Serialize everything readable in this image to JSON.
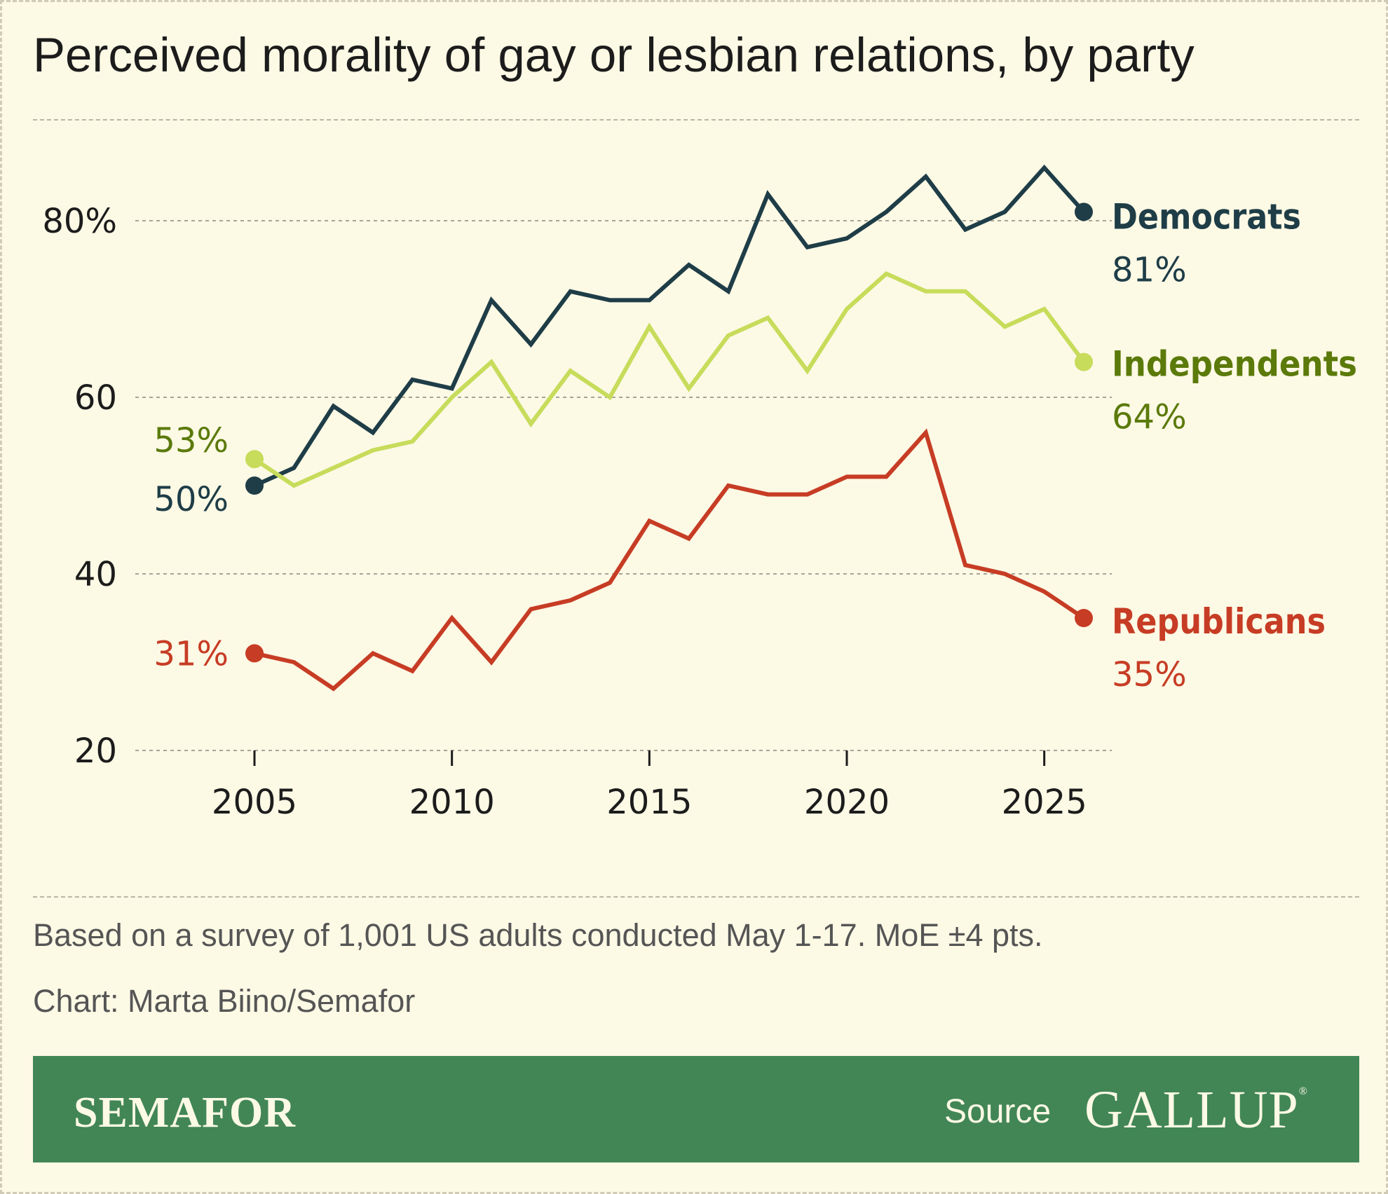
{
  "title": "Perceived morality of gay or lesbian relations, by party",
  "footer": {
    "note": "Based on a survey of 1,001 US adults conducted May 1-17. MoE ±4 pts.",
    "credit": "Chart: Marta Biino/Semafor"
  },
  "banner": {
    "brand": "SEMAFOR",
    "source_label": "Source",
    "source_logo": "GALLUP",
    "source_logo_mark": "®",
    "color": "#428656"
  },
  "chart_data": {
    "type": "line",
    "xlim": [
      2005,
      2026
    ],
    "ylim": [
      20,
      80
    ],
    "y_ticks": [
      {
        "value": 80,
        "label": "80%"
      },
      {
        "value": 60,
        "label": "60"
      },
      {
        "value": 40,
        "label": "40"
      },
      {
        "value": 20,
        "label": "20"
      }
    ],
    "x_ticks": [
      {
        "value": 2005,
        "label": "2005"
      },
      {
        "value": 2010,
        "label": "2010"
      },
      {
        "value": 2015,
        "label": "2015"
      },
      {
        "value": 2020,
        "label": "2020"
      },
      {
        "value": 2025,
        "label": "2025"
      }
    ],
    "x": [
      2005,
      2006,
      2007,
      2008,
      2009,
      2010,
      2011,
      2012,
      2013,
      2014,
      2015,
      2016,
      2017,
      2018,
      2019,
      2020,
      2021,
      2022,
      2023,
      2024,
      2025,
      2026
    ],
    "series": [
      {
        "name": "Democrats",
        "color": "#1e3d47",
        "label_color": "#1e3d47",
        "start_label": "50%",
        "end_label": "81%",
        "values": [
          50,
          52,
          59,
          56,
          62,
          61,
          71,
          66,
          72,
          71,
          71,
          75,
          72,
          83,
          77,
          78,
          81,
          85,
          79,
          81,
          86,
          81
        ]
      },
      {
        "name": "Independents",
        "color": "#c7dc5a",
        "label_color": "#5b7a0a",
        "start_label": "53%",
        "end_label": "64%",
        "values": [
          53,
          50,
          52,
          54,
          55,
          60,
          64,
          57,
          63,
          60,
          68,
          61,
          67,
          69,
          63,
          70,
          74,
          72,
          72,
          68,
          70,
          64
        ]
      },
      {
        "name": "Republicans",
        "color": "#c73c24",
        "label_color": "#c73c24",
        "start_label": "31%",
        "end_label": "35%",
        "values": [
          31,
          30,
          27,
          31,
          29,
          35,
          30,
          36,
          37,
          39,
          46,
          44,
          50,
          49,
          49,
          51,
          51,
          56,
          41,
          40,
          38,
          35
        ]
      }
    ]
  }
}
